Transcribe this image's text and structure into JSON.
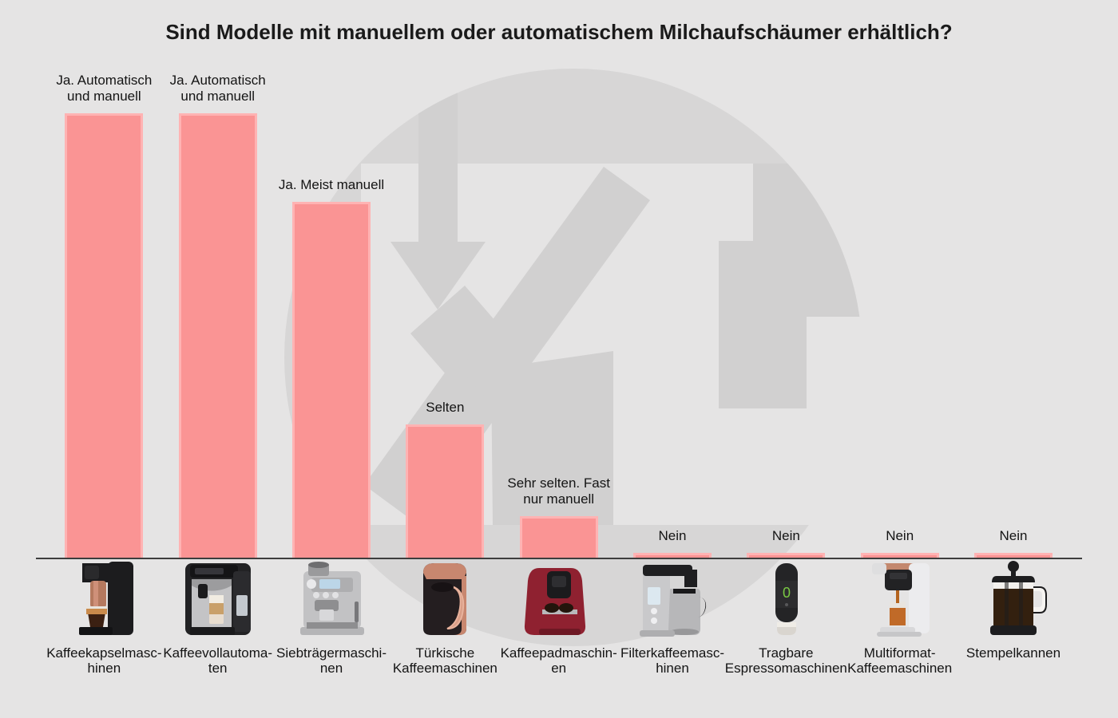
{
  "title": "Sind Modelle mit manuellem oder automatischem Milchaufschäumer erhältlich?",
  "chart_data": {
    "type": "bar",
    "title": "Sind Modelle mit manuellem oder automatischem Milchaufschäumer erhältlich?",
    "categories": [
      "Kaffeekapselmasc-\nhinen",
      "Kaffeevollautoma-\nten",
      "Siebträgermaschi-\nnen",
      "Türkische\nKaffeemaschinen",
      "Kaffeepadmaschin-\nen",
      "Filterkaffeemasc-\nhinen",
      "Tragbare\nEspressomaschinen",
      "Multiformat-\nKaffeemaschinen",
      "Stempelkannen"
    ],
    "values": [
      100,
      100,
      80,
      30,
      9.3,
      1,
      1,
      1,
      1
    ],
    "bar_labels": [
      "Ja. Automatisch\nund manuell",
      "Ja. Automatisch\nund manuell",
      "Ja. Meist manuell",
      "Selten",
      "Sehr selten. Fast\nnur manuell",
      "Nein",
      "Nein",
      "Nein",
      "Nein"
    ],
    "ylim": [
      0,
      100
    ],
    "grid": false,
    "legend": false,
    "bar_color": "#fa9494",
    "bar_border_color": "#ffb3b3",
    "axis_color": "#3d3d3d",
    "background_color": "#e5e4e4",
    "watermark_color": "#d7d6d6",
    "icons": [
      "capsule-machine",
      "bean-to-cup-machine",
      "portafilter-machine",
      "turkish-coffee-machine",
      "pad-machine",
      "drip-filter-machine",
      "portable-espresso-machine",
      "multiformat-machine",
      "french-press"
    ]
  }
}
